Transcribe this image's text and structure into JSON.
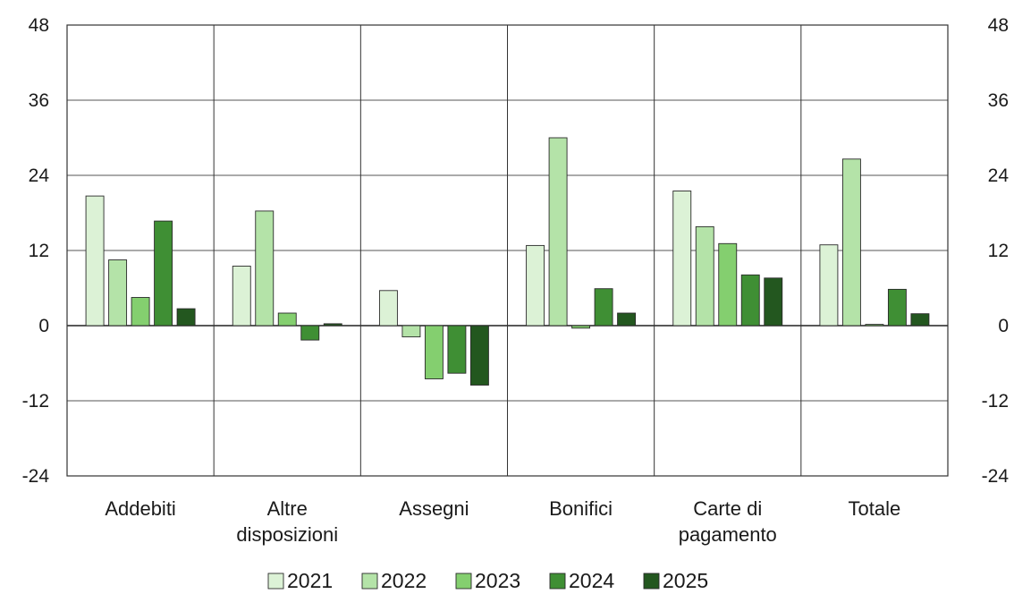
{
  "chart_data": {
    "type": "bar",
    "categories": [
      [
        "Addebiti"
      ],
      [
        "Altre",
        "disposizioni"
      ],
      [
        "Assegni"
      ],
      [
        "Bonifici"
      ],
      [
        "Carte di",
        "pagamento"
      ],
      [
        "Totale"
      ]
    ],
    "series": [
      {
        "name": "2021",
        "color": "#dcf2d6",
        "values": [
          20.7,
          9.5,
          5.6,
          12.8,
          21.5,
          12.9
        ]
      },
      {
        "name": "2022",
        "color": "#b4e3a8",
        "values": [
          10.5,
          18.3,
          -1.8,
          30.0,
          15.8,
          26.6
        ]
      },
      {
        "name": "2023",
        "color": "#84cf6f",
        "values": [
          4.5,
          2.0,
          -8.5,
          -0.4,
          13.1,
          0.2
        ]
      },
      {
        "name": "2024",
        "color": "#3f8f34",
        "values": [
          16.7,
          -2.3,
          -7.6,
          5.9,
          8.1,
          5.8
        ]
      },
      {
        "name": "2025",
        "color": "#23571f",
        "values": [
          2.7,
          0.3,
          -9.5,
          2.0,
          7.6,
          1.9
        ]
      }
    ],
    "ylim": [
      -24,
      48
    ],
    "yticks": [
      -24,
      -12,
      0,
      12,
      24,
      36,
      48
    ],
    "tick_labels": [
      "-24",
      "-12",
      "0",
      "12",
      "24",
      "36",
      "48"
    ],
    "grid": true,
    "legend_position": "bottom",
    "title": "",
    "xlabel": "",
    "ylabel": ""
  }
}
